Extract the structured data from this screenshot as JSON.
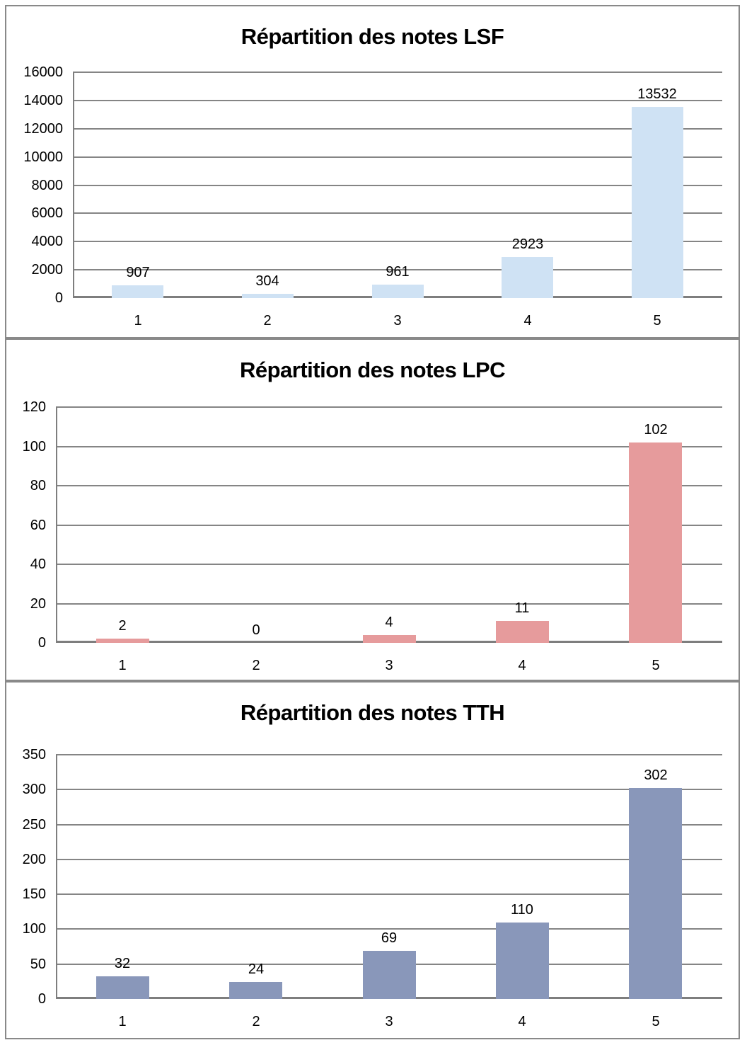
{
  "page": {
    "background": "#ffffff",
    "panel_border_color": "#898989",
    "gridline_color": "#858585",
    "axis_color": "#7e7e7e",
    "text_color": "#000000"
  },
  "chart_data": [
    {
      "type": "bar",
      "title": "Répartition des notes LSF",
      "categories": [
        "1",
        "2",
        "3",
        "4",
        "5"
      ],
      "values": [
        907,
        304,
        961,
        2923,
        13532
      ],
      "data_labels": [
        "907",
        "304",
        "961",
        "2923",
        "13532"
      ],
      "xlabel": "",
      "ylabel": "",
      "ylim": [
        0,
        16000
      ],
      "ytick_step": 2000,
      "ytick_labels": [
        "0",
        "2000",
        "4000",
        "6000",
        "8000",
        "10000",
        "12000",
        "14000",
        "16000"
      ],
      "grid": true,
      "legend": "none",
      "bar_color": "#cfe2f4"
    },
    {
      "type": "bar",
      "title": "Répartition des notes LPC",
      "categories": [
        "1",
        "2",
        "3",
        "4",
        "5"
      ],
      "values": [
        2,
        0,
        4,
        11,
        102
      ],
      "data_labels": [
        "2",
        "0",
        "4",
        "11",
        "102"
      ],
      "xlabel": "",
      "ylabel": "",
      "ylim": [
        0,
        120
      ],
      "ytick_step": 20,
      "ytick_labels": [
        "0",
        "20",
        "40",
        "60",
        "80",
        "100",
        "120"
      ],
      "grid": true,
      "legend": "none",
      "bar_color": "#e69b9c"
    },
    {
      "type": "bar",
      "title": "Répartition des notes TTH",
      "categories": [
        "1",
        "2",
        "3",
        "4",
        "5"
      ],
      "values": [
        32,
        24,
        69,
        110,
        302
      ],
      "data_labels": [
        "32",
        "24",
        "69",
        "110",
        "302"
      ],
      "xlabel": "",
      "ylabel": "",
      "ylim": [
        0,
        350
      ],
      "ytick_step": 50,
      "ytick_labels": [
        "0",
        "50",
        "100",
        "150",
        "200",
        "250",
        "300",
        "350"
      ],
      "grid": true,
      "legend": "none",
      "bar_color": "#8997ba"
    }
  ]
}
